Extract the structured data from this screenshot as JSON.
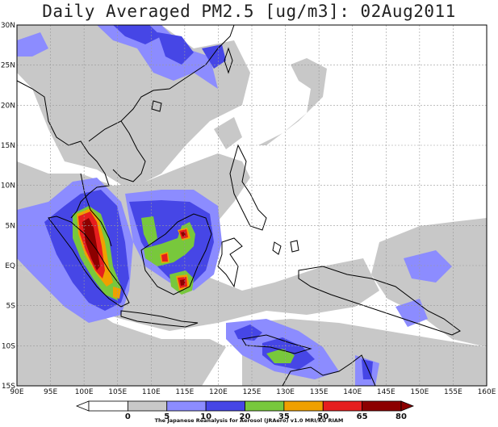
{
  "title": "Daily Averaged PM2.5 [ug/m3]: 02Aug2011",
  "credit": "The Japanese Reanalysis for Aerosol (JRAero) v1.0 MRI/KU RIAM",
  "axes": {
    "lat_ticks": [
      "30N",
      "25N",
      "20N",
      "15N",
      "10N",
      "5N",
      "EQ",
      "5S",
      "10S",
      "15S"
    ],
    "lon_ticks": [
      "90E",
      "95E",
      "100E",
      "105E",
      "110E",
      "115E",
      "120E",
      "125E",
      "130E",
      "135E",
      "140E",
      "145E",
      "150E",
      "155E",
      "160E"
    ]
  },
  "colors": {
    "c5_10": "#c8c8c8",
    "c10_20": "#8c8cff",
    "c20_35": "#4646e6",
    "c35_50": "#78c83c",
    "c50_65": "#f0a000",
    "c65_80": "#e61e1e",
    "c80p": "#8c0000"
  },
  "colorbar": {
    "labels": [
      "0",
      "5",
      "10",
      "20",
      "35",
      "50",
      "65",
      "80"
    ],
    "colors": [
      "#ffffff",
      "#c8c8c8",
      "#8c8cff",
      "#4646e6",
      "#78c83c",
      "#f0a000",
      "#e61e1e",
      "#8c0000"
    ]
  }
}
